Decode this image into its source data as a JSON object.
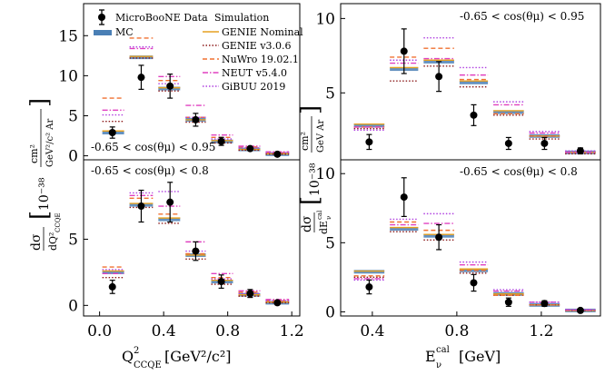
{
  "colors": {
    "data": "#000000",
    "mc": "#4a7fb5",
    "genie_nominal": "#e6a020",
    "genie_v306": "#8b1a1a",
    "nuwro": "#f07030",
    "neut": "#e040c0",
    "gibuu": "#b040e0"
  },
  "legend": {
    "data": "MicroBooNE Data",
    "mc": "MC",
    "simulation": "Simulation",
    "genie_nominal": "GENIE Nominal",
    "genie_v306": "GENIE v3.0.6",
    "nuwro": "NuWro 19.02.1",
    "neut": "NEUT  v5.4.0",
    "gibuu": "GiBUU 2019"
  },
  "labels": {
    "left_ylabel": "dσ/dQ²CCQE [10⁻³⁸ cm²/(GeV²/c² Ar)]",
    "right_ylabel": "dσ/dEνcal [10⁻³⁸ cm²/(GeV Ar)]",
    "left_xlabel": "Q²CCQE [GeV²/c²]",
    "right_xlabel": "Eνcal [GeV]",
    "ann_095": "-0.65 < cos(θμ) < 0.95",
    "ann_08": "-0.65 < cos(θμ) < 0.8"
  },
  "chart_data": [
    {
      "id": "left_top",
      "type": "scatter",
      "annotation": "-0.65 < cos(θμ) < 0.95",
      "xlim": [
        -0.1,
        1.25
      ],
      "ylim": [
        -0.5,
        19
      ],
      "yticks": [
        0,
        5,
        10,
        15
      ],
      "bins": [
        [
          0.0,
          0.17
        ],
        [
          0.17,
          0.35
        ],
        [
          0.35,
          0.52
        ],
        [
          0.52,
          0.68
        ],
        [
          0.68,
          0.85
        ],
        [
          0.85,
          1.02
        ],
        [
          1.02,
          1.2
        ]
      ],
      "data": {
        "x": [
          0.08,
          0.26,
          0.44,
          0.6,
          0.76,
          0.94,
          1.11
        ],
        "y": [
          2.9,
          9.8,
          8.7,
          4.5,
          1.8,
          0.9,
          0.2
        ],
        "err": [
          0.7,
          1.5,
          1.5,
          0.8,
          0.5,
          0.2,
          0.1
        ]
      },
      "series": [
        {
          "key": "mc",
          "values": [
            2.9,
            12.3,
            8.4,
            4.5,
            1.8,
            0.8,
            0.2
          ]
        },
        {
          "key": "genie_nominal",
          "values": [
            3.1,
            12.4,
            8.5,
            4.5,
            1.9,
            0.8,
            0.25
          ]
        },
        {
          "key": "genie_v306",
          "values": [
            4.3,
            12.2,
            8.1,
            4.2,
            1.6,
            0.7,
            0.2
          ]
        },
        {
          "key": "nuwro",
          "values": [
            7.2,
            14.7,
            9.4,
            4.8,
            2.3,
            1.1,
            0.4
          ]
        },
        {
          "key": "neut",
          "values": [
            5.7,
            13.4,
            9.9,
            6.3,
            2.6,
            1.2,
            0.5
          ]
        },
        {
          "key": "gibuu",
          "values": [
            5.1,
            13.6,
            9.0,
            4.8,
            2.1,
            1.0,
            0.4
          ]
        }
      ]
    },
    {
      "id": "left_bottom",
      "type": "scatter",
      "annotation": "-0.65 < cos(θμ) < 0.8",
      "xlim": [
        -0.1,
        1.25
      ],
      "ylim": [
        -0.8,
        11
      ],
      "yticks": [
        0,
        5
      ],
      "xticks": [
        0.0,
        0.4,
        0.8,
        1.2
      ],
      "xticklabels": [
        "0.0",
        "0.4",
        "0.8",
        "1.2"
      ],
      "bins": [
        [
          0.0,
          0.17
        ],
        [
          0.17,
          0.35
        ],
        [
          0.35,
          0.52
        ],
        [
          0.52,
          0.68
        ],
        [
          0.68,
          0.85
        ],
        [
          0.85,
          1.02
        ],
        [
          1.02,
          1.2
        ]
      ],
      "data": {
        "x": [
          0.08,
          0.26,
          0.44,
          0.6,
          0.76,
          0.94,
          1.11
        ],
        "y": [
          1.4,
          7.5,
          7.8,
          4.1,
          1.8,
          0.9,
          0.2
        ],
        "err": [
          0.5,
          1.2,
          1.5,
          0.7,
          0.5,
          0.3,
          0.1
        ]
      },
      "series": [
        {
          "key": "mc",
          "values": [
            2.5,
            7.6,
            6.5,
            3.8,
            1.8,
            0.8,
            0.2
          ]
        },
        {
          "key": "genie_nominal",
          "values": [
            2.6,
            7.7,
            6.6,
            3.8,
            1.9,
            0.8,
            0.25
          ]
        },
        {
          "key": "genie_v306",
          "values": [
            2.1,
            7.4,
            6.2,
            3.5,
            1.6,
            0.7,
            0.2
          ]
        },
        {
          "key": "nuwro",
          "values": [
            2.9,
            8.1,
            6.9,
            3.9,
            2.1,
            1.0,
            0.35
          ]
        },
        {
          "key": "neut",
          "values": [
            2.4,
            8.3,
            7.5,
            4.8,
            2.4,
            1.1,
            0.45
          ]
        },
        {
          "key": "gibuu",
          "values": [
            2.7,
            8.5,
            8.6,
            4.1,
            2.0,
            0.9,
            0.35
          ]
        }
      ]
    },
    {
      "id": "right_top",
      "type": "scatter",
      "annotation": "-0.65 < cos(θμ) < 0.95",
      "xlim": [
        0.25,
        1.48
      ],
      "ylim": [
        0.5,
        11
      ],
      "yticks": [
        5,
        10
      ],
      "bins": [
        [
          0.3,
          0.47
        ],
        [
          0.47,
          0.63
        ],
        [
          0.63,
          0.8
        ],
        [
          0.8,
          0.96
        ],
        [
          0.96,
          1.13
        ],
        [
          1.13,
          1.3
        ],
        [
          1.3,
          1.47
        ]
      ],
      "data": {
        "x": [
          0.385,
          0.55,
          0.715,
          0.88,
          1.045,
          1.215,
          1.385
        ],
        "y": [
          1.7,
          7.8,
          6.1,
          3.5,
          1.6,
          1.6,
          1.1
        ],
        "err": [
          0.5,
          1.5,
          1.0,
          0.7,
          0.4,
          0.4,
          0.2
        ]
      },
      "series": [
        {
          "key": "mc",
          "values": [
            2.8,
            6.6,
            7.1,
            5.7,
            3.7,
            2.1,
            1.0
          ]
        },
        {
          "key": "genie_nominal",
          "values": [
            2.9,
            6.7,
            7.2,
            5.8,
            3.8,
            2.1,
            1.0
          ]
        },
        {
          "key": "genie_v306",
          "values": [
            2.6,
            5.8,
            6.8,
            5.4,
            3.5,
            1.9,
            0.9
          ]
        },
        {
          "key": "nuwro",
          "values": [
            2.7,
            7.4,
            8.0,
            5.9,
            3.6,
            2.1,
            1.0
          ]
        },
        {
          "key": "neut",
          "values": [
            2.7,
            7.0,
            7.3,
            6.2,
            4.2,
            2.3,
            1.0
          ]
        },
        {
          "key": "gibuu",
          "values": [
            2.5,
            7.2,
            8.7,
            6.7,
            4.4,
            2.4,
            1.1
          ]
        }
      ]
    },
    {
      "id": "right_bottom",
      "type": "scatter",
      "annotation": "-0.65 < cos(θμ) < 0.8",
      "xlim": [
        0.25,
        1.48
      ],
      "ylim": [
        -0.3,
        11
      ],
      "yticks": [
        0,
        5,
        10
      ],
      "xticks": [
        0.4,
        0.8,
        1.2
      ],
      "xticklabels": [
        "0.4",
        "0.8",
        "1.2"
      ],
      "bins": [
        [
          0.3,
          0.47
        ],
        [
          0.47,
          0.63
        ],
        [
          0.63,
          0.8
        ],
        [
          0.8,
          0.96
        ],
        [
          0.96,
          1.13
        ],
        [
          1.13,
          1.3
        ],
        [
          1.3,
          1.47
        ]
      ],
      "data": {
        "x": [
          0.385,
          0.55,
          0.715,
          0.88,
          1.045,
          1.215,
          1.385
        ],
        "y": [
          1.8,
          8.3,
          5.4,
          2.1,
          0.7,
          0.6,
          0.1
        ],
        "err": [
          0.5,
          1.4,
          0.9,
          0.6,
          0.3,
          0.2,
          0.1
        ]
      },
      "series": [
        {
          "key": "mc",
          "values": [
            2.9,
            6.0,
            5.5,
            3.0,
            1.3,
            0.5,
            0.1
          ]
        },
        {
          "key": "genie_nominal",
          "values": [
            2.95,
            6.1,
            5.6,
            3.1,
            1.3,
            0.5,
            0.1
          ]
        },
        {
          "key": "genie_v306",
          "values": [
            2.5,
            5.8,
            5.2,
            2.8,
            1.2,
            0.5,
            0.1
          ]
        },
        {
          "key": "nuwro",
          "values": [
            2.6,
            6.5,
            5.9,
            3.0,
            1.2,
            0.5,
            0.1
          ]
        },
        {
          "key": "neut",
          "values": [
            2.4,
            6.3,
            6.4,
            3.4,
            1.5,
            0.7,
            0.15
          ]
        },
        {
          "key": "gibuu",
          "values": [
            2.3,
            6.7,
            7.1,
            3.6,
            1.6,
            0.7,
            0.15
          ]
        }
      ]
    }
  ]
}
